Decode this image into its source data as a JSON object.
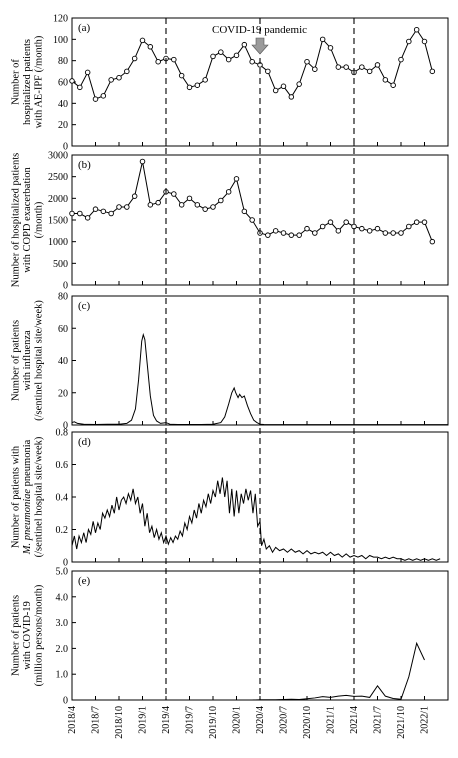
{
  "chart_data": {
    "x_tick_labels": [
      "2018/4",
      "2018/7",
      "2018/10",
      "2019/1",
      "2019/4",
      "2019/7",
      "2019/10",
      "2020/1",
      "2020/4",
      "2020/7",
      "2020/10",
      "2021/1",
      "2021/4",
      "2021/7",
      "2021/10",
      "2022/1"
    ],
    "x_range": [
      "2018/4",
      "2022/4"
    ],
    "vertical_dashed_lines_at": [
      "2019/4",
      "2020/4",
      "2021/4"
    ],
    "annotation": {
      "text": "COVID-19 pandemic",
      "points_to": "2020/4"
    },
    "panels": [
      {
        "label": "(a)",
        "type": "line",
        "markers": true,
        "ylabel_lines": [
          "Number of",
          "hospitalized patients",
          "with AE-IPF (/month)"
        ],
        "ylim": [
          0,
          120
        ],
        "yticks": [
          0,
          20,
          40,
          60,
          80,
          100,
          120
        ],
        "ytick_labels": [
          "0",
          "20",
          "40",
          "60",
          "80",
          "100",
          "120"
        ],
        "start": "2018/4",
        "values": [
          61,
          55,
          69,
          44,
          47,
          62,
          64,
          70,
          82,
          99,
          93,
          79,
          82,
          81,
          66,
          55,
          57,
          62,
          84,
          88,
          81,
          85,
          95,
          79,
          76,
          70,
          52,
          56,
          46,
          58,
          79,
          72,
          100,
          92,
          74,
          74,
          69,
          74,
          70,
          76,
          62,
          57,
          81,
          98,
          109,
          98,
          70
        ]
      },
      {
        "label": "(b)",
        "type": "line",
        "markers": true,
        "ylabel_lines": [
          "Number of  hospitalized patients",
          "with COPD exacerbation",
          "(/month)"
        ],
        "ylim": [
          0,
          3000
        ],
        "yticks": [
          0,
          500,
          1000,
          1500,
          2000,
          2500,
          3000
        ],
        "ytick_labels": [
          "0",
          "500",
          "1000",
          "1500",
          "2000",
          "2500",
          "3000"
        ],
        "start": "2018/4",
        "values": [
          1650,
          1650,
          1550,
          1750,
          1700,
          1650,
          1800,
          1800,
          2050,
          2850,
          1850,
          1900,
          2150,
          2100,
          1850,
          2000,
          1850,
          1750,
          1800,
          1950,
          2150,
          2450,
          1700,
          1500,
          1200,
          1150,
          1250,
          1200,
          1150,
          1150,
          1300,
          1200,
          1350,
          1450,
          1250,
          1450,
          1350,
          1300,
          1250,
          1300,
          1200,
          1200,
          1200,
          1350,
          1450,
          1450,
          1000
        ]
      },
      {
        "label": "(c)",
        "type": "line",
        "markers": false,
        "ylabel_lines": [
          "Number of patients",
          "with influenza",
          "(/sentinel hospital site/week)"
        ],
        "ylim": [
          0,
          80
        ],
        "yticks": [
          0,
          20,
          40,
          60,
          80
        ],
        "ytick_labels": [
          "0",
          "20",
          "40",
          "60",
          "80"
        ],
        "points": [
          [
            0,
            1.5
          ],
          [
            0.3,
            2
          ],
          [
            0.7,
            1
          ],
          [
            1.5,
            0.5
          ],
          [
            3,
            0.3
          ],
          [
            4.5,
            0.5
          ],
          [
            6,
            0.5
          ],
          [
            7,
            1
          ],
          [
            7.6,
            3
          ],
          [
            8.1,
            10
          ],
          [
            8.5,
            28
          ],
          [
            8.9,
            52
          ],
          [
            9.1,
            56
          ],
          [
            9.3,
            53
          ],
          [
            9.6,
            38
          ],
          [
            10,
            18
          ],
          [
            10.4,
            6
          ],
          [
            10.8,
            2.5
          ],
          [
            11.3,
            1
          ],
          [
            12,
            1.5
          ],
          [
            12.5,
            0.5
          ],
          [
            13.5,
            0.3
          ],
          [
            15,
            0.3
          ],
          [
            16.5,
            0.3
          ],
          [
            18,
            0.5
          ],
          [
            19,
            1.5
          ],
          [
            19.5,
            5
          ],
          [
            20,
            13
          ],
          [
            20.4,
            20
          ],
          [
            20.7,
            23
          ],
          [
            20.9,
            20
          ],
          [
            21.2,
            17
          ],
          [
            21.4,
            19
          ],
          [
            21.7,
            17
          ],
          [
            22,
            18
          ],
          [
            22.4,
            12
          ],
          [
            22.8,
            7
          ],
          [
            23.2,
            3
          ],
          [
            23.6,
            1.5
          ],
          [
            24,
            0.5
          ],
          [
            24.5,
            0.3
          ],
          [
            48,
            0.2
          ]
        ]
      },
      {
        "label": "(d)",
        "type": "line",
        "markers": false,
        "ylabel_lines": [
          "Number of patients with",
          "M. pneumoniae pneumonia",
          "(/sentinel hospital site/week)"
        ],
        "ylim": [
          0,
          0.8
        ],
        "yticks": [
          0,
          0.2,
          0.4,
          0.6,
          0.8
        ],
        "ytick_labels": [
          "0",
          "0.2",
          "0.4",
          "0.6",
          "0.8"
        ],
        "points": [
          [
            0,
            0.1
          ],
          [
            0.3,
            0.16
          ],
          [
            0.6,
            0.08
          ],
          [
            0.9,
            0.16
          ],
          [
            1.2,
            0.12
          ],
          [
            1.5,
            0.18
          ],
          [
            1.8,
            0.12
          ],
          [
            2.1,
            0.2
          ],
          [
            2.4,
            0.17
          ],
          [
            2.7,
            0.25
          ],
          [
            3,
            0.18
          ],
          [
            3.3,
            0.24
          ],
          [
            3.6,
            0.2
          ],
          [
            3.9,
            0.3
          ],
          [
            4.2,
            0.27
          ],
          [
            4.5,
            0.32
          ],
          [
            4.8,
            0.28
          ],
          [
            5.1,
            0.35
          ],
          [
            5.4,
            0.3
          ],
          [
            5.7,
            0.4
          ],
          [
            6,
            0.32
          ],
          [
            6.3,
            0.38
          ],
          [
            6.6,
            0.4
          ],
          [
            6.9,
            0.36
          ],
          [
            7.2,
            0.42
          ],
          [
            7.5,
            0.38
          ],
          [
            7.8,
            0.45
          ],
          [
            8.1,
            0.36
          ],
          [
            8.4,
            0.4
          ],
          [
            8.7,
            0.3
          ],
          [
            9,
            0.36
          ],
          [
            9.3,
            0.22
          ],
          [
            9.6,
            0.3
          ],
          [
            9.9,
            0.18
          ],
          [
            10.2,
            0.22
          ],
          [
            10.5,
            0.15
          ],
          [
            10.8,
            0.2
          ],
          [
            11.1,
            0.14
          ],
          [
            11.4,
            0.18
          ],
          [
            11.7,
            0.12
          ],
          [
            12,
            0.16
          ],
          [
            12.3,
            0.11
          ],
          [
            12.6,
            0.15
          ],
          [
            12.9,
            0.12
          ],
          [
            13.2,
            0.16
          ],
          [
            13.5,
            0.14
          ],
          [
            13.8,
            0.19
          ],
          [
            14.1,
            0.16
          ],
          [
            14.4,
            0.24
          ],
          [
            14.7,
            0.2
          ],
          [
            15,
            0.28
          ],
          [
            15.3,
            0.24
          ],
          [
            15.6,
            0.32
          ],
          [
            15.9,
            0.27
          ],
          [
            16.2,
            0.36
          ],
          [
            16.5,
            0.3
          ],
          [
            16.8,
            0.38
          ],
          [
            17.1,
            0.34
          ],
          [
            17.4,
            0.42
          ],
          [
            17.7,
            0.36
          ],
          [
            18,
            0.44
          ],
          [
            18.3,
            0.4
          ],
          [
            18.6,
            0.5
          ],
          [
            18.9,
            0.42
          ],
          [
            19.2,
            0.52
          ],
          [
            19.5,
            0.4
          ],
          [
            19.8,
            0.5
          ],
          [
            20.1,
            0.3
          ],
          [
            20.4,
            0.45
          ],
          [
            20.7,
            0.28
          ],
          [
            21,
            0.44
          ],
          [
            21.3,
            0.3
          ],
          [
            21.6,
            0.42
          ],
          [
            21.9,
            0.36
          ],
          [
            22.2,
            0.45
          ],
          [
            22.5,
            0.38
          ],
          [
            22.8,
            0.44
          ],
          [
            23.1,
            0.3
          ],
          [
            23.4,
            0.42
          ],
          [
            23.7,
            0.22
          ],
          [
            24,
            0.25
          ],
          [
            24.2,
            0.1
          ],
          [
            24.5,
            0.14
          ],
          [
            24.8,
            0.08
          ],
          [
            25.2,
            0.1
          ],
          [
            25.6,
            0.06
          ],
          [
            26,
            0.09
          ],
          [
            26.5,
            0.07
          ],
          [
            27,
            0.08
          ],
          [
            27.5,
            0.06
          ],
          [
            28,
            0.08
          ],
          [
            28.5,
            0.06
          ],
          [
            29,
            0.07
          ],
          [
            29.5,
            0.05
          ],
          [
            30,
            0.07
          ],
          [
            30.5,
            0.05
          ],
          [
            31,
            0.06
          ],
          [
            31.5,
            0.05
          ],
          [
            32,
            0.06
          ],
          [
            32.5,
            0.04
          ],
          [
            33,
            0.06
          ],
          [
            33.5,
            0.04
          ],
          [
            34,
            0.05
          ],
          [
            34.5,
            0.03
          ],
          [
            35,
            0.05
          ],
          [
            35.5,
            0.03
          ],
          [
            36,
            0.04
          ],
          [
            36.5,
            0.03
          ],
          [
            37,
            0.04
          ],
          [
            37.5,
            0.02
          ],
          [
            38,
            0.04
          ],
          [
            38.5,
            0.03
          ],
          [
            39,
            0.03
          ],
          [
            39.5,
            0.02
          ],
          [
            40,
            0.03
          ],
          [
            40.5,
            0.02
          ],
          [
            41,
            0.03
          ],
          [
            41.5,
            0.02
          ],
          [
            42,
            0.02
          ],
          [
            42.5,
            0.01
          ],
          [
            43,
            0.02
          ],
          [
            43.5,
            0.01
          ],
          [
            44,
            0.02
          ],
          [
            44.5,
            0.01
          ],
          [
            45,
            0.02
          ],
          [
            45.5,
            0.01
          ],
          [
            46,
            0.02
          ],
          [
            46.5,
            0.01
          ],
          [
            47,
            0.02
          ]
        ]
      },
      {
        "label": "(e)",
        "type": "line",
        "markers": false,
        "ylabel_lines": [
          "Number of patients",
          "with COVID-19",
          "(million persons/month)"
        ],
        "ylim": [
          0,
          5.0
        ],
        "yticks": [
          0,
          1.0,
          2.0,
          3.0,
          4.0,
          5.0
        ],
        "ytick_labels": [
          "0",
          "1.0",
          "2.0",
          "3.0",
          "4.0",
          "5.0"
        ],
        "points": [
          [
            22,
            0
          ],
          [
            23,
            0
          ],
          [
            24,
            0.01
          ],
          [
            25,
            0.01
          ],
          [
            26,
            0.01
          ],
          [
            27,
            0.02
          ],
          [
            28,
            0.03
          ],
          [
            29,
            0.02
          ],
          [
            30,
            0.05
          ],
          [
            31,
            0.08
          ],
          [
            32,
            0.13
          ],
          [
            33,
            0.1
          ],
          [
            34,
            0.15
          ],
          [
            35,
            0.18
          ],
          [
            36,
            0.14
          ],
          [
            37,
            0.15
          ],
          [
            38,
            0.1
          ],
          [
            39,
            0.55
          ],
          [
            40,
            0.15
          ],
          [
            41,
            0.06
          ],
          [
            42,
            0.03
          ],
          [
            43,
            0.9
          ],
          [
            44,
            2.2
          ],
          [
            45,
            1.55
          ]
        ]
      }
    ]
  }
}
